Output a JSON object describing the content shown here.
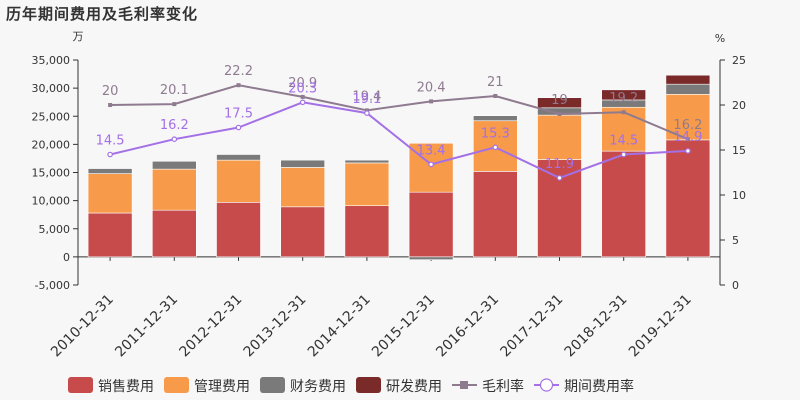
{
  "title": "历年期间费用及毛利率变化",
  "chart_data": {
    "type": "bar",
    "stacked": true,
    "title": "历年期间费用及毛利率变化",
    "y_left_unit": "万",
    "y_right_unit": "%",
    "ylim_left": [
      -5000,
      35000
    ],
    "yticks_left": [
      -5000,
      0,
      5000,
      10000,
      15000,
      20000,
      25000,
      30000,
      35000
    ],
    "ytick_labels_left": [
      "-5,000",
      "0",
      "5,000",
      "10,000",
      "15,000",
      "20,000",
      "25,000",
      "30,000",
      "35,000"
    ],
    "ylim_right": [
      0,
      25
    ],
    "yticks_right": [
      0,
      5,
      10,
      15,
      20,
      25
    ],
    "categories": [
      "2010-12-31",
      "2011-12-31",
      "2012-12-31",
      "2013-12-31",
      "2014-12-31",
      "2015-12-31",
      "2016-12-31",
      "2017-12-31",
      "2018-12-31",
      "2019-12-31"
    ],
    "series": [
      {
        "name": "销售费用",
        "kind": "bar",
        "axis": "left",
        "color": "#c84b4b",
        "values": [
          7800,
          8300,
          9700,
          8900,
          9100,
          11500,
          15200,
          17300,
          18800,
          20800
        ]
      },
      {
        "name": "管理费用",
        "kind": "bar",
        "axis": "left",
        "color": "#f79a4a",
        "values": [
          7000,
          7300,
          7500,
          7000,
          7600,
          8700,
          9000,
          7900,
          7800,
          8100
        ]
      },
      {
        "name": "财务费用",
        "kind": "bar",
        "axis": "left",
        "color": "#7a7a7a",
        "values": [
          900,
          1400,
          1000,
          1300,
          500,
          -500,
          900,
          1300,
          1300,
          1800
        ]
      },
      {
        "name": "研发费用",
        "kind": "bar",
        "axis": "left",
        "color": "#7b2a2a",
        "values": [
          0,
          0,
          0,
          0,
          0,
          0,
          0,
          1800,
          1800,
          1600
        ]
      },
      {
        "name": "毛利率",
        "kind": "line",
        "axis": "right",
        "color": "#8f7b8f",
        "values": [
          20,
          20.1,
          22.2,
          20.9,
          19.4,
          20.4,
          21,
          19,
          19.2,
          16.2
        ]
      },
      {
        "name": "期间费用率",
        "kind": "line",
        "axis": "right",
        "color": "#a370e6",
        "values": [
          14.5,
          16.2,
          17.5,
          20.3,
          19.1,
          13.4,
          15.3,
          11.9,
          14.5,
          14.9
        ]
      }
    ],
    "legend_position": "bottom",
    "grid": false
  }
}
